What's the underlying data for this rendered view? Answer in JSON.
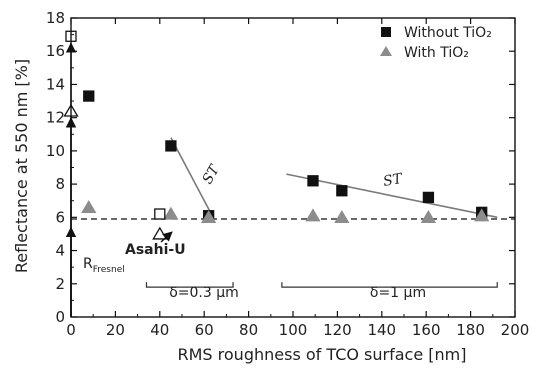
{
  "chart_data": {
    "type": "scatter",
    "xlabel": "RMS roughness of TCO surface [nm]",
    "ylabel": "Reflectance at 550 nm [%]",
    "xlim": [
      0,
      200
    ],
    "ylim": [
      0,
      18
    ],
    "xticks": [
      0,
      20,
      40,
      60,
      80,
      100,
      120,
      140,
      160,
      180,
      200
    ],
    "yticks": [
      0,
      2,
      4,
      6,
      8,
      10,
      12,
      14,
      16,
      18
    ],
    "legend_position": "top-right",
    "series": [
      {
        "name": "Without TiO₂",
        "marker": "square",
        "color": "#111111",
        "points": [
          [
            8,
            13.3
          ],
          [
            45,
            10.3
          ],
          [
            62,
            6.1
          ],
          [
            109,
            8.2
          ],
          [
            122,
            7.6
          ],
          [
            161,
            7.2
          ],
          [
            185,
            6.3
          ]
        ]
      },
      {
        "name": "With TiO₂",
        "marker": "triangle",
        "color": "#8c8c8c",
        "points": [
          [
            8,
            6.6
          ],
          [
            45,
            6.2
          ],
          [
            62,
            6.0
          ],
          [
            109,
            6.1
          ],
          [
            122,
            6.0
          ],
          [
            161,
            6.0
          ],
          [
            185,
            6.1
          ]
        ]
      }
    ],
    "open_markers": [
      {
        "marker": "square",
        "x": 0,
        "y": 16.9
      },
      {
        "marker": "triangle",
        "x": 0,
        "y": 12.4
      },
      {
        "marker": "square",
        "x": 40,
        "y": 6.2
      },
      {
        "marker": "triangle",
        "x": 40,
        "y": 5.0
      }
    ],
    "fresnel_arrows": {
      "x": 0,
      "y_from": 0,
      "stops": [
        5.8,
        12.4,
        16.9
      ]
    },
    "reference_line": {
      "y": 5.9,
      "style": "dashed"
    },
    "fit_lines": [
      {
        "label": "ST",
        "from": [
          45,
          10.8
        ],
        "to": [
          64,
          6.0
        ]
      },
      {
        "label": "ST",
        "from": [
          97,
          8.6
        ],
        "to": [
          192,
          6.0
        ]
      }
    ],
    "annotations": {
      "fresnel_main": "R",
      "fresnel_sub": "Fresnel",
      "asahi": "Asahi-U",
      "st": "ST",
      "delta_small": "δ=0.3 μm",
      "delta_large": "δ=1 μm"
    },
    "brackets": [
      {
        "label_key": "delta_small",
        "x_from": 34,
        "x_to": 73,
        "y": 1.8
      },
      {
        "label_key": "delta_large",
        "x_from": 95,
        "x_to": 192,
        "y": 1.8
      }
    ]
  }
}
